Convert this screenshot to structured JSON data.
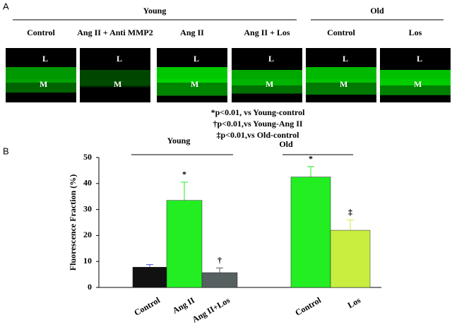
{
  "panel_a": {
    "label": "A",
    "groups": [
      {
        "name": "Young",
        "images": [
          "Control",
          "Ang II + Anti MMP2",
          "Ang II",
          "Ang II + Los"
        ]
      },
      {
        "name": "Old",
        "images": [
          "Control",
          "Los"
        ]
      }
    ],
    "lumen_label": "L",
    "media_label": "M"
  },
  "annotations": [
    "*p<0.01, vs Young-control",
    "†p<0.01,vs Young-Ang II",
    "‡p<0.01,vs Old-control"
  ],
  "chart_data": {
    "type": "bar",
    "panel_label": "B",
    "ylabel": "Fluorescence Fraction (%)",
    "categories": [
      "Control",
      "Ang II",
      "Ang II+Los",
      "Control",
      "Los"
    ],
    "groups": [
      {
        "name": "Young",
        "members": [
          0,
          1,
          2
        ]
      },
      {
        "name": "Old",
        "members": [
          3,
          4
        ]
      }
    ],
    "values": [
      7.8,
      33.5,
      5.7,
      42.5,
      22
    ],
    "errors": [
      1.0,
      7.0,
      1.8,
      4.0,
      4.0
    ],
    "markers": [
      null,
      "*",
      "†",
      "*",
      "‡"
    ],
    "colors": [
      "#111111",
      "#22ee22",
      "#566060",
      "#22ee22",
      "#c8ee40"
    ],
    "error_colors": [
      "#4455cc",
      "#22ee22",
      "#566060",
      "#22ee22",
      "#c8ee40"
    ],
    "ylim": [
      0,
      50
    ],
    "yticks": [
      0,
      10,
      20,
      30,
      40,
      50
    ]
  }
}
